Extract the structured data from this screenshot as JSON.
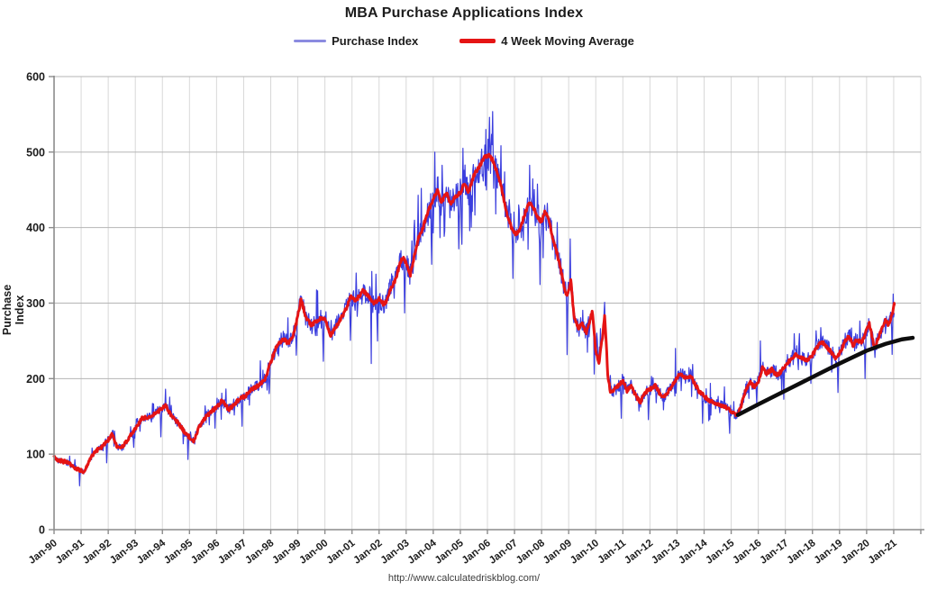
{
  "header": {
    "title": "MBA Purchase Applications Index"
  },
  "legend": {
    "items": [
      {
        "label": "Purchase Index",
        "swatch_color": "#8b8be0"
      },
      {
        "label": "4 Week Moving Average",
        "swatch_color": "#e51414"
      }
    ]
  },
  "footer": {
    "url": "http://www.calculatedriskblog.com/"
  },
  "colors": {
    "purchase_index": "#3b3ede",
    "moving_average": "#e51414",
    "trend_line": "#0d0d0d",
    "grid_horizontal": "#b5b5b5",
    "grid_vertical": "#d8d8d8",
    "axis": "#8c8c8c",
    "tick_text": "#1c1c1c"
  },
  "chart_data": {
    "type": "line",
    "title": "MBA Purchase Applications Index",
    "xlabel": "",
    "ylabel": "Purchase Index",
    "xlim": [
      1990,
      2022
    ],
    "ylim": [
      0,
      600
    ],
    "grid": true,
    "legend_position": "top",
    "y_ticks": [
      0,
      100,
      200,
      300,
      400,
      500,
      600
    ],
    "x_tick_years": [
      1990,
      1991,
      1992,
      1993,
      1994,
      1995,
      1996,
      1997,
      1998,
      1999,
      2000,
      2001,
      2002,
      2003,
      2004,
      2005,
      2006,
      2007,
      2008,
      2009,
      2010,
      2011,
      2012,
      2013,
      2014,
      2015,
      2016,
      2017,
      2018,
      2019,
      2020,
      2021
    ],
    "x_tick_labels": [
      "Jan-90",
      "Jan-91",
      "Jan-92",
      "Jan-93",
      "Jan-94",
      "Jan-95",
      "Jan-96",
      "Jan-97",
      "Jan-98",
      "Jan-99",
      "Jan-00",
      "Jan-01",
      "Jan-02",
      "Jan-03",
      "Jan-04",
      "Jan-05",
      "Jan-06",
      "Jan-07",
      "Jan-08",
      "Jan-09",
      "Jan-10",
      "Jan-11",
      "Jan-12",
      "Jan-13",
      "Jan-14",
      "Jan-15",
      "Jan-16",
      "Jan-17",
      "Jan-18",
      "Jan-19",
      "Jan-20",
      "Jan-21"
    ],
    "series": [
      {
        "name": "Purchase Index",
        "type": "weekly_from_average_plus_noise",
        "color": "#3b3ede",
        "width": 1.2
      },
      {
        "name": "4 Week Moving Average",
        "color": "#e51414",
        "width": 3,
        "anchors": [
          [
            1990.0,
            95
          ],
          [
            1990.25,
            91
          ],
          [
            1990.5,
            89
          ],
          [
            1990.75,
            82
          ],
          [
            1990.95,
            79
          ],
          [
            1991.1,
            76
          ],
          [
            1991.3,
            92
          ],
          [
            1991.5,
            103
          ],
          [
            1991.75,
            109
          ],
          [
            1992.0,
            119
          ],
          [
            1992.15,
            126
          ],
          [
            1992.35,
            108
          ],
          [
            1992.55,
            110
          ],
          [
            1992.8,
            124
          ],
          [
            1993.0,
            133
          ],
          [
            1993.25,
            147
          ],
          [
            1993.5,
            150
          ],
          [
            1993.75,
            154
          ],
          [
            1994.0,
            161
          ],
          [
            1994.12,
            165
          ],
          [
            1994.35,
            150
          ],
          [
            1994.6,
            141
          ],
          [
            1994.85,
            127
          ],
          [
            1995.05,
            121
          ],
          [
            1995.15,
            117
          ],
          [
            1995.35,
            136
          ],
          [
            1995.55,
            147
          ],
          [
            1995.8,
            156
          ],
          [
            1996.0,
            162
          ],
          [
            1996.2,
            171
          ],
          [
            1996.45,
            159
          ],
          [
            1996.7,
            168
          ],
          [
            1996.9,
            174
          ],
          [
            1997.1,
            178
          ],
          [
            1997.3,
            186
          ],
          [
            1997.55,
            191
          ],
          [
            1997.8,
            200
          ],
          [
            1998.0,
            222
          ],
          [
            1998.2,
            241
          ],
          [
            1998.45,
            253
          ],
          [
            1998.65,
            247
          ],
          [
            1998.85,
            259
          ],
          [
            1999.0,
            283
          ],
          [
            1999.12,
            305
          ],
          [
            1999.3,
            281
          ],
          [
            1999.5,
            271
          ],
          [
            1999.75,
            278
          ],
          [
            2000.0,
            281
          ],
          [
            2000.2,
            257
          ],
          [
            2000.45,
            271
          ],
          [
            2000.7,
            286
          ],
          [
            2000.95,
            308
          ],
          [
            2001.15,
            303
          ],
          [
            2001.4,
            317
          ],
          [
            2001.6,
            309
          ],
          [
            2001.8,
            299
          ],
          [
            2002.0,
            306
          ],
          [
            2002.2,
            297
          ],
          [
            2002.4,
            317
          ],
          [
            2002.6,
            331
          ],
          [
            2002.8,
            355
          ],
          [
            2002.9,
            361
          ],
          [
            2003.05,
            348
          ],
          [
            2003.15,
            337
          ],
          [
            2003.3,
            362
          ],
          [
            2003.45,
            385
          ],
          [
            2003.6,
            398
          ],
          [
            2003.8,
            421
          ],
          [
            2004.0,
            437
          ],
          [
            2004.15,
            450
          ],
          [
            2004.3,
            434
          ],
          [
            2004.5,
            446
          ],
          [
            2004.65,
            431
          ],
          [
            2004.8,
            441
          ],
          [
            2005.0,
            446
          ],
          [
            2005.15,
            459
          ],
          [
            2005.3,
            446
          ],
          [
            2005.5,
            469
          ],
          [
            2005.7,
            481
          ],
          [
            2005.9,
            494
          ],
          [
            2006.05,
            496
          ],
          [
            2006.2,
            489
          ],
          [
            2006.35,
            474
          ],
          [
            2006.5,
            456
          ],
          [
            2006.7,
            421
          ],
          [
            2006.9,
            399
          ],
          [
            2007.05,
            391
          ],
          [
            2007.2,
            398
          ],
          [
            2007.4,
            420
          ],
          [
            2007.55,
            433
          ],
          [
            2007.7,
            427
          ],
          [
            2007.85,
            413
          ],
          [
            2008.0,
            408
          ],
          [
            2008.12,
            421
          ],
          [
            2008.25,
            414
          ],
          [
            2008.4,
            386
          ],
          [
            2008.55,
            369
          ],
          [
            2008.7,
            346
          ],
          [
            2008.85,
            319
          ],
          [
            2008.95,
            309
          ],
          [
            2009.08,
            330
          ],
          [
            2009.2,
            281
          ],
          [
            2009.35,
            267
          ],
          [
            2009.5,
            272
          ],
          [
            2009.65,
            261
          ],
          [
            2009.8,
            279
          ],
          [
            2009.87,
            289
          ],
          [
            2010.0,
            237
          ],
          [
            2010.12,
            221
          ],
          [
            2010.25,
            256
          ],
          [
            2010.33,
            286
          ],
          [
            2010.45,
            201
          ],
          [
            2010.55,
            181
          ],
          [
            2010.7,
            186
          ],
          [
            2010.85,
            191
          ],
          [
            2011.0,
            198
          ],
          [
            2011.15,
            184
          ],
          [
            2011.3,
            191
          ],
          [
            2011.5,
            176
          ],
          [
            2011.65,
            169
          ],
          [
            2011.8,
            181
          ],
          [
            2012.0,
            186
          ],
          [
            2012.2,
            191
          ],
          [
            2012.35,
            181
          ],
          [
            2012.5,
            176
          ],
          [
            2012.7,
            184
          ],
          [
            2012.85,
            193
          ],
          [
            2013.0,
            201
          ],
          [
            2013.12,
            207
          ],
          [
            2013.3,
            201
          ],
          [
            2013.5,
            204
          ],
          [
            2013.65,
            194
          ],
          [
            2013.8,
            184
          ],
          [
            2014.0,
            177
          ],
          [
            2014.2,
            171
          ],
          [
            2014.45,
            167
          ],
          [
            2014.7,
            164
          ],
          [
            2014.9,
            160
          ],
          [
            2015.1,
            154
          ],
          [
            2015.25,
            152
          ],
          [
            2015.4,
            168
          ],
          [
            2015.55,
            186
          ],
          [
            2015.7,
            196
          ],
          [
            2015.85,
            189
          ],
          [
            2016.0,
            196
          ],
          [
            2016.15,
            214
          ],
          [
            2016.3,
            207
          ],
          [
            2016.5,
            212
          ],
          [
            2016.7,
            204
          ],
          [
            2016.85,
            210
          ],
          [
            2017.0,
            216
          ],
          [
            2017.2,
            226
          ],
          [
            2017.4,
            232
          ],
          [
            2017.6,
            227
          ],
          [
            2017.8,
            224
          ],
          [
            2018.0,
            231
          ],
          [
            2018.2,
            243
          ],
          [
            2018.35,
            249
          ],
          [
            2018.5,
            243
          ],
          [
            2018.7,
            235
          ],
          [
            2018.85,
            227
          ],
          [
            2019.0,
            233
          ],
          [
            2019.2,
            249
          ],
          [
            2019.35,
            256
          ],
          [
            2019.5,
            244
          ],
          [
            2019.65,
            252
          ],
          [
            2019.8,
            247
          ],
          [
            2019.95,
            259
          ],
          [
            2020.1,
            274
          ],
          [
            2020.22,
            251
          ],
          [
            2020.3,
            241
          ],
          [
            2020.45,
            256
          ],
          [
            2020.6,
            269
          ],
          [
            2020.7,
            277
          ],
          [
            2020.8,
            271
          ],
          [
            2020.9,
            281
          ],
          [
            2020.96,
            288
          ],
          [
            2021.02,
            298
          ]
        ]
      },
      {
        "name": "Trend Line",
        "color": "#0d0d0d",
        "width": 4.5,
        "anchors": [
          [
            2015.25,
            152
          ],
          [
            2016.0,
            166
          ],
          [
            2017.0,
            184
          ],
          [
            2018.0,
            202
          ],
          [
            2019.0,
            220
          ],
          [
            2020.0,
            237
          ],
          [
            2020.7,
            246
          ],
          [
            2021.3,
            252
          ],
          [
            2021.7,
            254
          ]
        ]
      }
    ],
    "noise": {
      "seed": 20210107,
      "blue_amp": 0.045,
      "red_amp": 2.4,
      "holiday_dip_min": 0.76,
      "holiday_dip_span": 0.08,
      "shoulder_dip": 0.92,
      "spike_prob": 0.05,
      "spike_amp": 0.1
    },
    "blue_events": [
      [
        1990.95,
        58
      ],
      [
        1994.12,
        186
      ],
      [
        2001.72,
        220
      ],
      [
        2003.55,
        452
      ],
      [
        2004.05,
        500
      ],
      [
        2005.1,
        505
      ],
      [
        2005.95,
        530
      ],
      [
        2009.05,
        385
      ],
      [
        2010.33,
        301
      ],
      [
        2012.95,
        240
      ],
      [
        2016.08,
        250
      ],
      [
        2020.3,
        228
      ],
      [
        2020.98,
        312
      ]
    ]
  }
}
